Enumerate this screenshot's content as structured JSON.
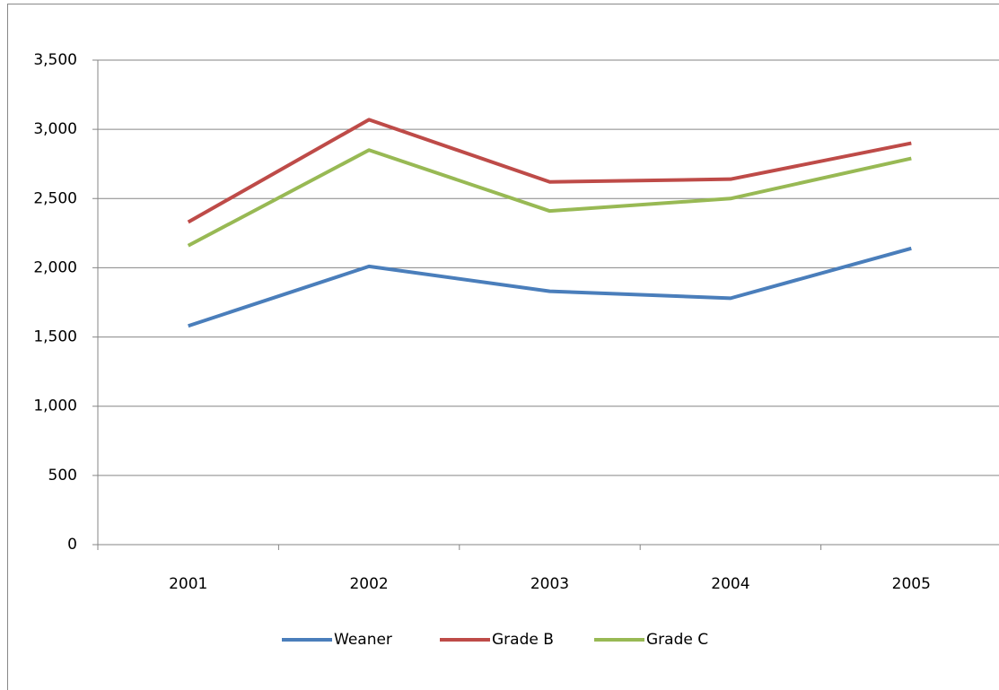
{
  "chart_data": {
    "type": "line",
    "categories": [
      "2001",
      "2002",
      "2003",
      "2004",
      "2005"
    ],
    "series": [
      {
        "name": "Weaner",
        "color": "#4a7ebb",
        "values": [
          1580,
          2010,
          1830,
          1780,
          2140
        ]
      },
      {
        "name": "Grade B",
        "color": "#be4b48",
        "values": [
          2330,
          3070,
          2620,
          2640,
          2900
        ]
      },
      {
        "name": "Grade C",
        "color": "#98b954",
        "values": [
          2160,
          2850,
          2410,
          2500,
          2790
        ]
      }
    ],
    "ylim": [
      0,
      3500
    ],
    "yticks": [
      0,
      500,
      {
        "value": 1000,
        "label": "1,000"
      },
      {
        "value": 1500,
        "label": "1,500"
      },
      {
        "value": 2000,
        "label": "2,000"
      },
      {
        "value": 2500,
        "label": "2,500"
      },
      {
        "value": 3000,
        "label": "3,000"
      },
      {
        "value": 3500,
        "label": "3,500"
      }
    ],
    "grid": true,
    "legend": "bottom"
  }
}
